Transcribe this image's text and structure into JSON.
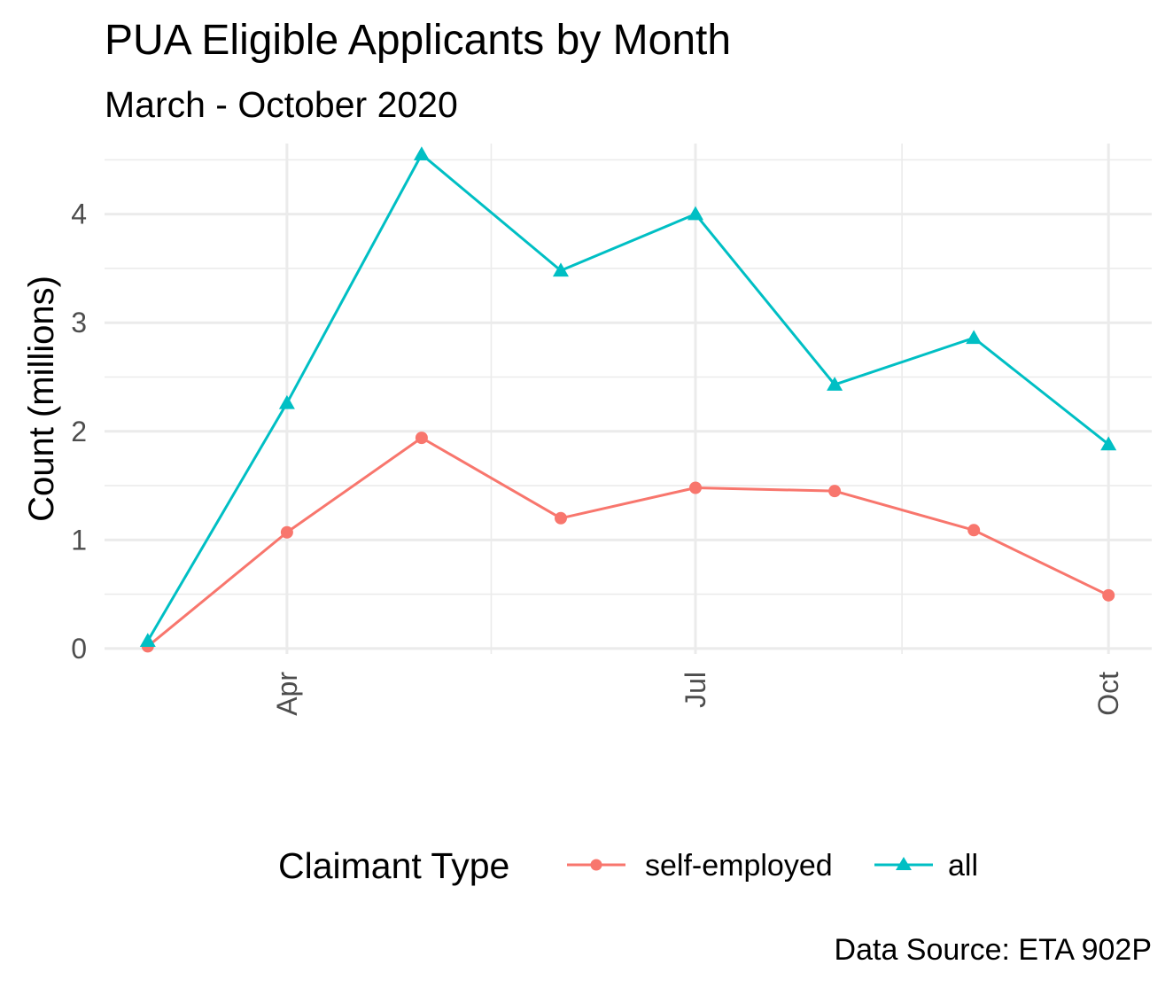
{
  "chart_data": {
    "type": "line",
    "title": "PUA Eligible Applicants by Month",
    "subtitle": "March - October 2020",
    "caption": "Data Source: ETA 902P",
    "xlabel": "",
    "ylabel": "Count (millions)",
    "x": [
      "2020-03-01",
      "2020-04-01",
      "2020-05-01",
      "2020-06-01",
      "2020-07-01",
      "2020-08-01",
      "2020-09-01",
      "2020-10-01"
    ],
    "x_ticks": [
      "Apr",
      "Jul",
      "Oct"
    ],
    "y_ticks": [
      "0",
      "1",
      "2",
      "3",
      "4"
    ],
    "ylim": [
      -0.05,
      4.65
    ],
    "grid": true,
    "legend_title": "Claimant Type",
    "legend_position": "bottom",
    "series": [
      {
        "name": "self-employed",
        "marker": "circle",
        "color": "#F8766D",
        "values": [
          0.02,
          1.07,
          1.94,
          1.2,
          1.48,
          1.45,
          1.09,
          0.49
        ]
      },
      {
        "name": "all",
        "marker": "triangle",
        "color": "#00BFC4",
        "values": [
          0.07,
          2.26,
          4.55,
          3.48,
          4.0,
          2.43,
          2.86,
          1.88
        ]
      }
    ]
  }
}
